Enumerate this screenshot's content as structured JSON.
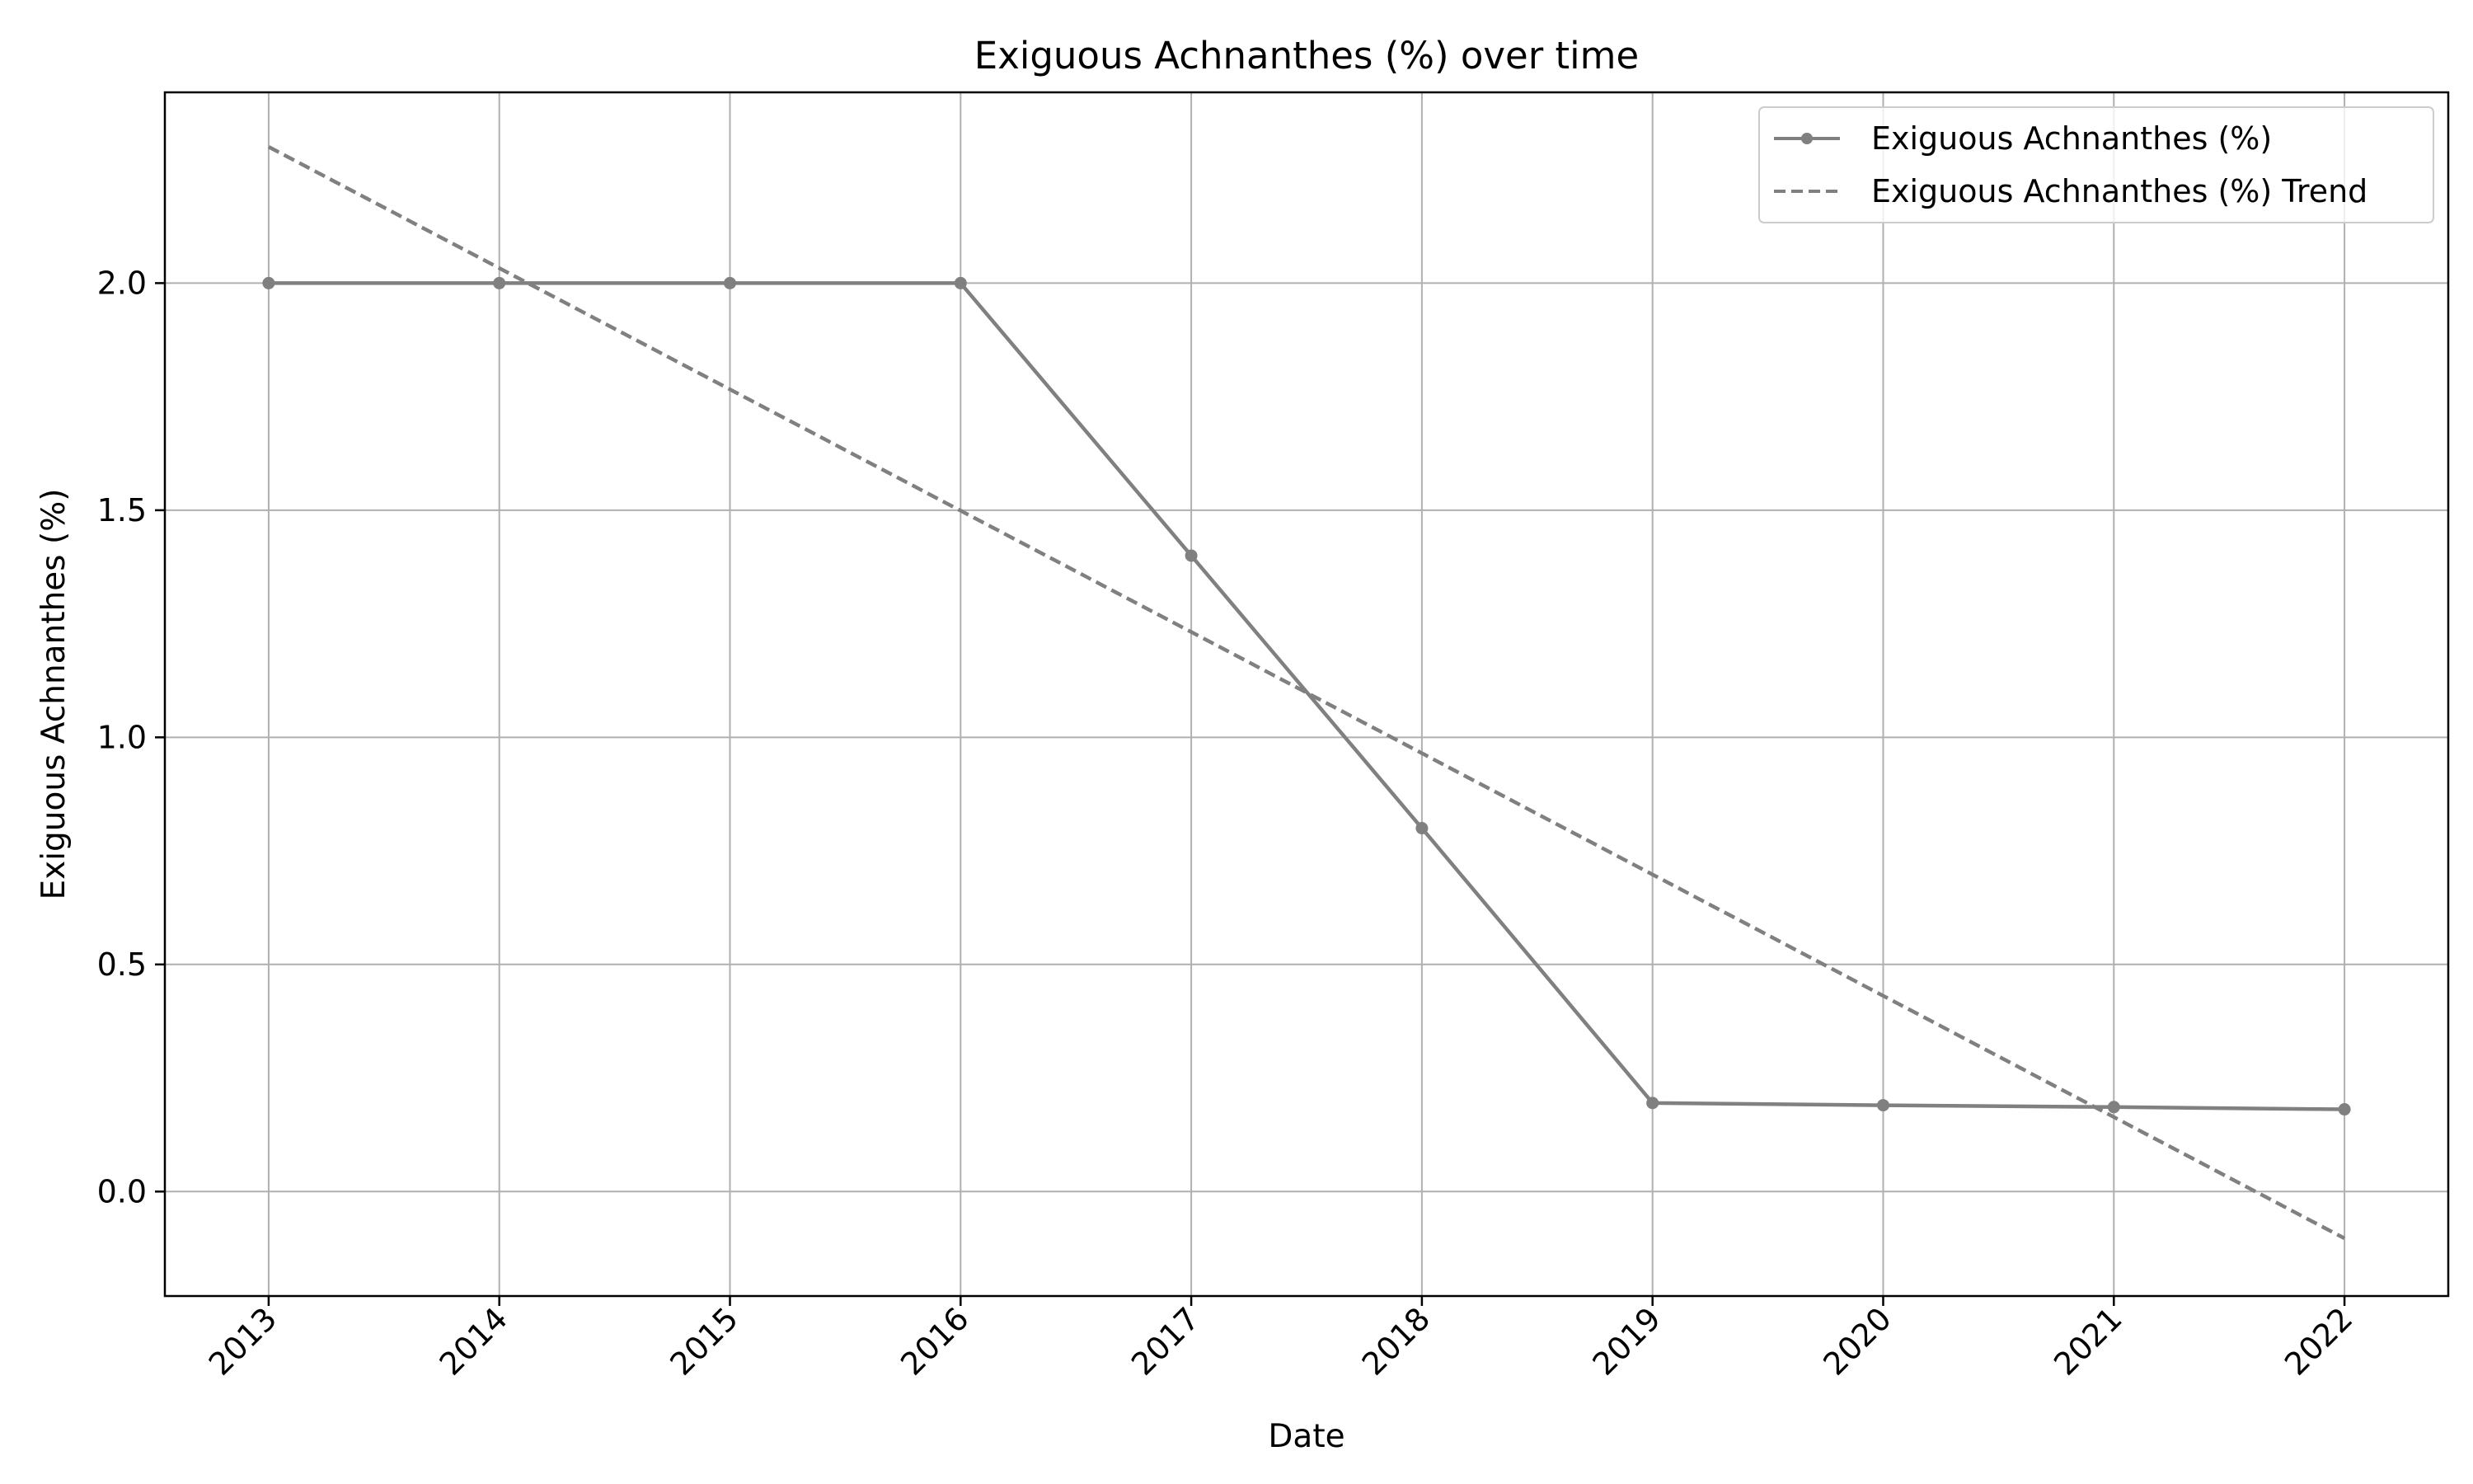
{
  "chart_data": {
    "type": "line",
    "title": "Exiguous Achnanthes (%) over time",
    "xlabel": "Date",
    "ylabel": "Exiguous Achnanthes (%)",
    "x": [
      "2013",
      "2014",
      "2015",
      "2016",
      "2017",
      "2018",
      "2019",
      "2020",
      "2021",
      "2022"
    ],
    "xlim": [
      2012.55,
      2022.45
    ],
    "ylim": [
      -0.23,
      2.42
    ],
    "yticks": [
      "0.0",
      "0.5",
      "1.0",
      "1.5",
      "2.0"
    ],
    "grid": true,
    "legend_position": "top-right",
    "series": [
      {
        "name": "Exiguous Achnanthes (%)",
        "style": "solid-with-markers",
        "color": "#808080",
        "values": [
          2.0,
          2.0,
          2.0,
          2.0,
          1.4,
          0.8,
          0.195,
          0.19,
          0.186,
          0.181
        ]
      },
      {
        "name": "Exiguous Achnanthes (%) Trend",
        "style": "dashed",
        "color": "#808080",
        "values": [
          2.3,
          2.033,
          1.766,
          1.499,
          1.232,
          0.965,
          0.698,
          0.431,
          0.164,
          -0.103
        ]
      }
    ]
  }
}
